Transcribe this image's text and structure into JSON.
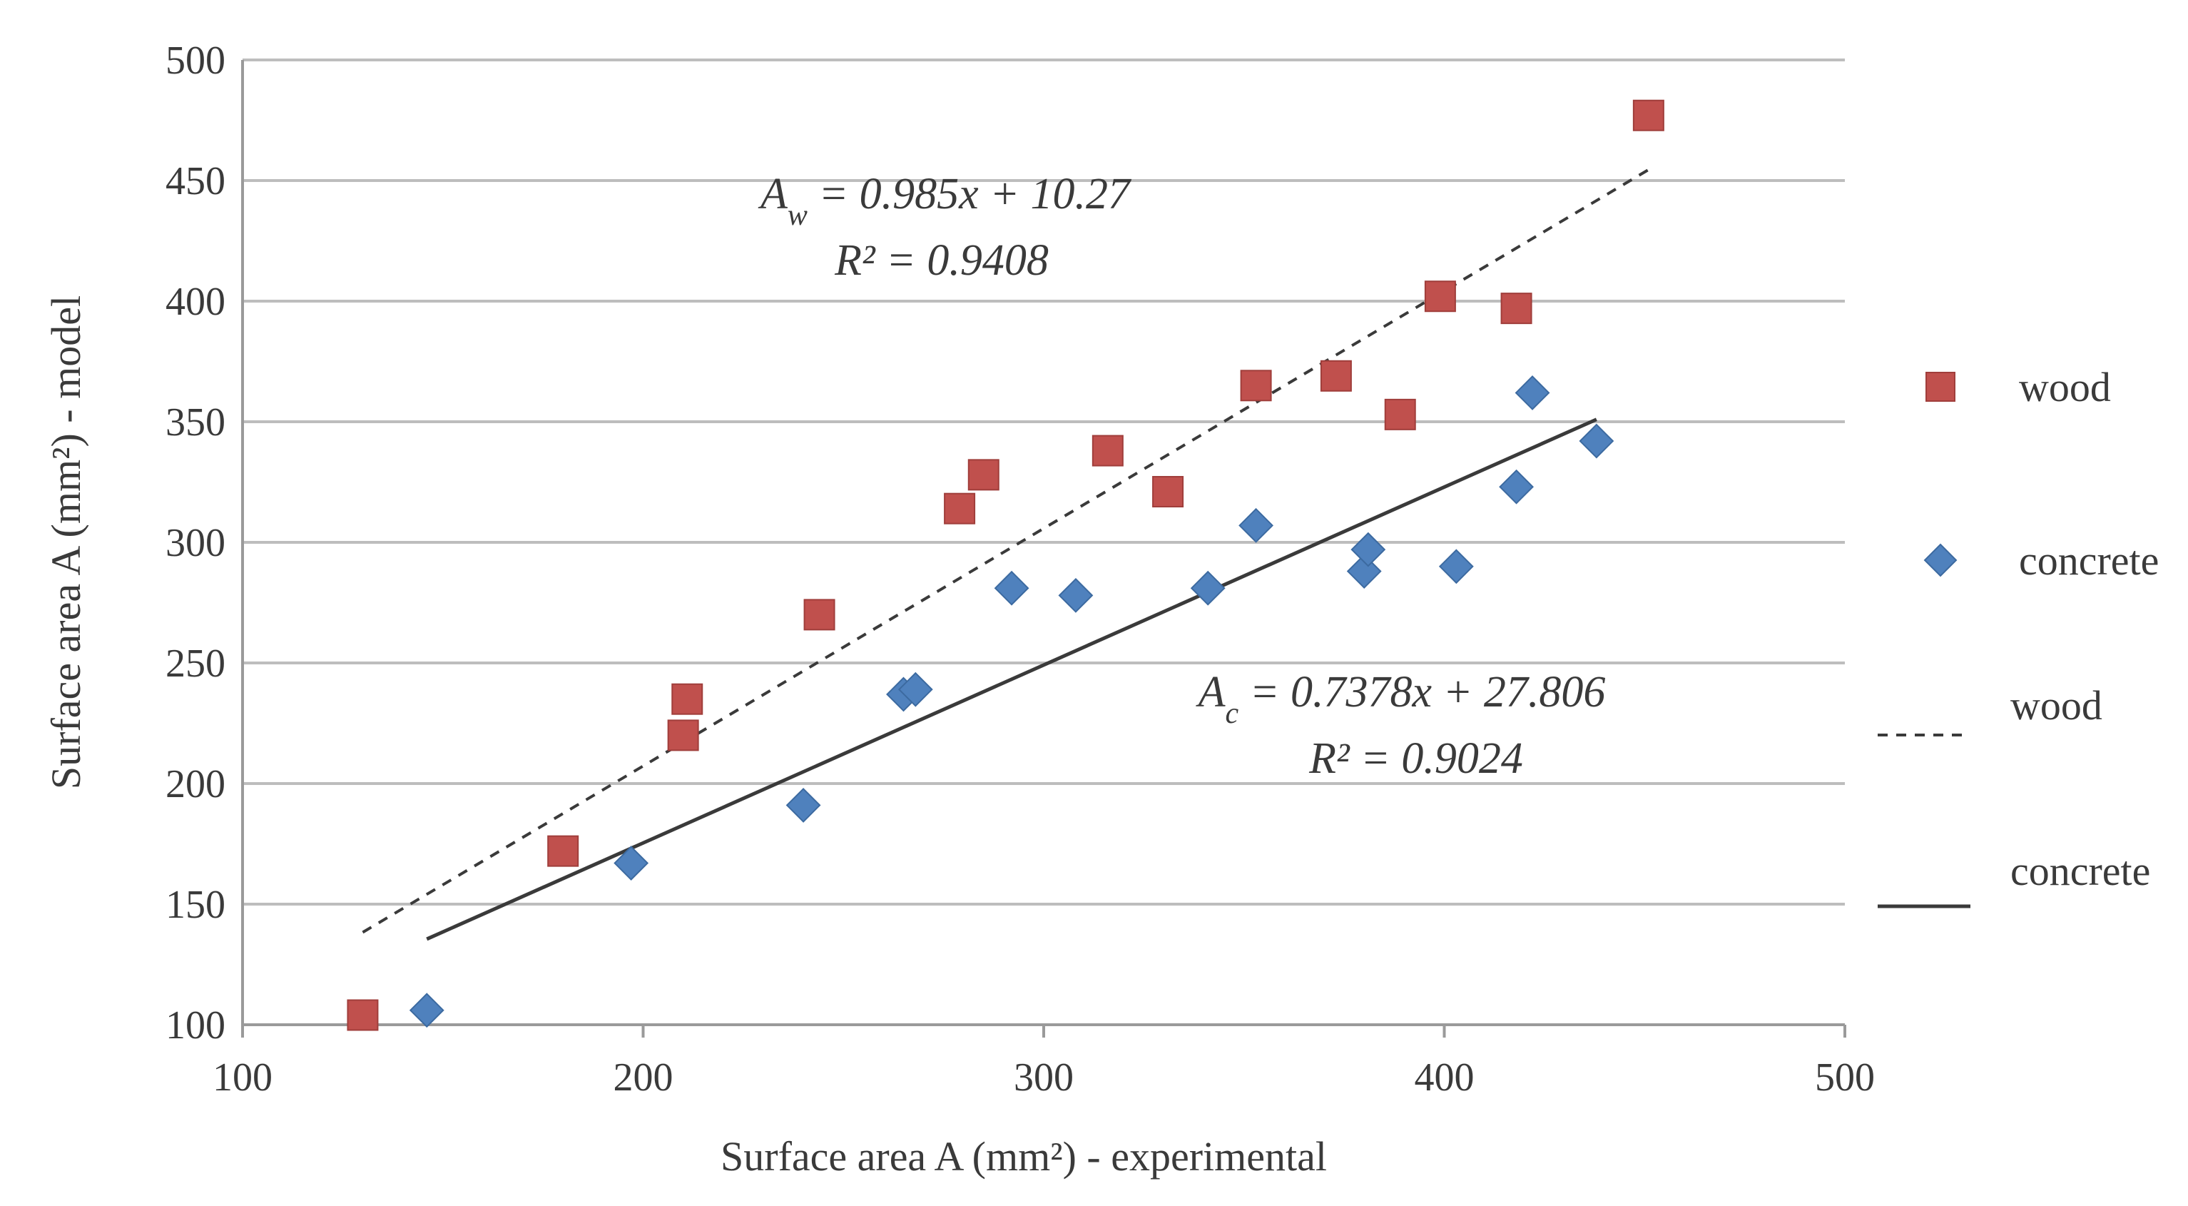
{
  "chart_data": {
    "type": "scatter",
    "xlabel": "Surface area A (mm²) - experimental",
    "ylabel": "Surface area A (mm²) - model",
    "xlim": [
      100,
      500
    ],
    "ylim": [
      100,
      500
    ],
    "x_ticks": [
      "100",
      "200",
      "300",
      "400",
      "500"
    ],
    "y_ticks": [
      "100",
      "150",
      "200",
      "250",
      "300",
      "350",
      "400",
      "450",
      "500"
    ],
    "grid": "horizontal",
    "legend_position": "right",
    "series": [
      {
        "name": "wood",
        "marker": "square",
        "color": "#c0504d",
        "points": [
          [
            130,
            104
          ],
          [
            180,
            172
          ],
          [
            210,
            220
          ],
          [
            211,
            235
          ],
          [
            244,
            270
          ],
          [
            279,
            314
          ],
          [
            285,
            328
          ],
          [
            316,
            338
          ],
          [
            331,
            321
          ],
          [
            353,
            365
          ],
          [
            373,
            369
          ],
          [
            389,
            353
          ],
          [
            399,
            402
          ],
          [
            418,
            397
          ],
          [
            451,
            477
          ]
        ]
      },
      {
        "name": "concrete",
        "marker": "diamond",
        "color": "#4f81bd",
        "points": [
          [
            146,
            106
          ],
          [
            197,
            167
          ],
          [
            240,
            191
          ],
          [
            265,
            237
          ],
          [
            268,
            239
          ],
          [
            292,
            281
          ],
          [
            308,
            278
          ],
          [
            341,
            281
          ],
          [
            353,
            307
          ],
          [
            380,
            288
          ],
          [
            381,
            297
          ],
          [
            403,
            290
          ],
          [
            418,
            323
          ],
          [
            422,
            362
          ],
          [
            438,
            342
          ]
        ]
      }
    ],
    "trendlines": [
      {
        "name": "wood",
        "style": "dashed",
        "slope": 0.985,
        "intercept": 10.27,
        "x_range": [
          130,
          451
        ],
        "equation_prefix": "A",
        "equation_subscript": "w",
        "equation_rest": " = 0.985x + 10.27",
        "r2_label": "R² = 0.9408"
      },
      {
        "name": "concrete",
        "style": "solid",
        "slope": 0.7378,
        "intercept": 27.806,
        "x_range": [
          146,
          438
        ],
        "equation_prefix": "A",
        "equation_subscript": "c",
        "equation_rest": " = 0.7378x + 27.806",
        "r2_label": "R² = 0.9024"
      }
    ],
    "legend": [
      {
        "label": "wood",
        "kind": "marker",
        "series": 0
      },
      {
        "label": "concrete",
        "kind": "marker",
        "series": 1
      },
      {
        "label": "wood",
        "kind": "line",
        "trend": 0
      },
      {
        "label": "concrete",
        "kind": "line",
        "trend": 1
      }
    ]
  }
}
